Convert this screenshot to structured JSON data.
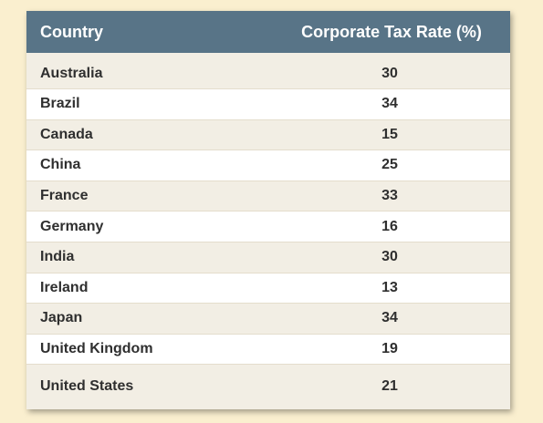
{
  "table": {
    "headers": {
      "country": "Country",
      "rate": "Corporate Tax Rate (%)"
    },
    "rows": [
      {
        "country": "Australia",
        "rate": "30"
      },
      {
        "country": "Brazil",
        "rate": "34"
      },
      {
        "country": "Canada",
        "rate": "15"
      },
      {
        "country": "China",
        "rate": "25"
      },
      {
        "country": "France",
        "rate": "33"
      },
      {
        "country": "Germany",
        "rate": "16"
      },
      {
        "country": "India",
        "rate": "30"
      },
      {
        "country": "Ireland",
        "rate": "13"
      },
      {
        "country": "Japan",
        "rate": "34"
      },
      {
        "country": "United Kingdom",
        "rate": "19"
      },
      {
        "country": "United States",
        "rate": "21"
      }
    ]
  },
  "colors": {
    "background": "#faefcf",
    "header": "#587487",
    "row_odd": "#f2eee4",
    "row_even": "#ffffff"
  }
}
